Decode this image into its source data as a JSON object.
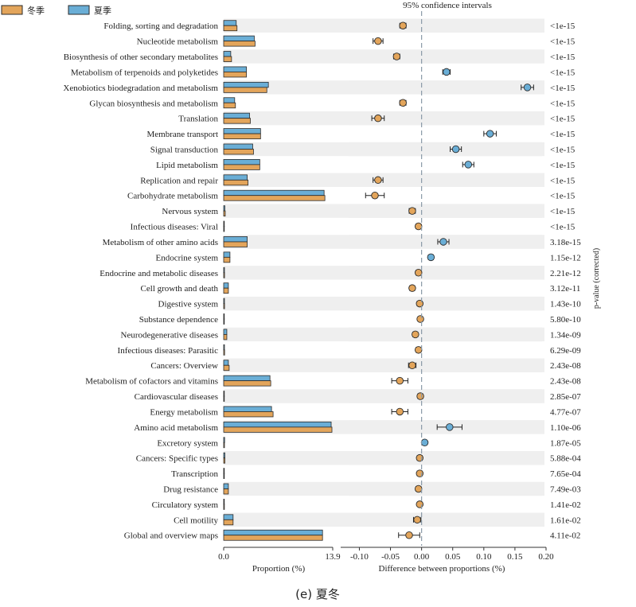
{
  "legend": [
    {
      "name": "冬季",
      "color": "#e3a55b"
    },
    {
      "name": "夏季",
      "color": "#6aaed6"
    }
  ],
  "colors": {
    "winter": "#e3a55b",
    "summer": "#6aaed6",
    "stripe": "#efefef",
    "edge": "#2b2b2b",
    "dash": "#8a9aa8"
  },
  "caption": "(e) 夏冬",
  "ci_title": "95% confidence intervals",
  "pvalue_axis_label": "p-value (corrected)",
  "chart_data": {
    "type": "bar",
    "categories": [
      "Folding, sorting and degradation",
      "Nucleotide metabolism",
      "Biosynthesis of other secondary metabolites",
      "Metabolism of terpenoids and polyketides",
      "Xenobiotics biodegradation and metabolism",
      "Glycan biosynthesis and metabolism",
      "Translation",
      "Membrane transport",
      "Signal transduction",
      "Lipid metabolism",
      "Replication and repair",
      "Carbohydrate metabolism",
      "Nervous system",
      "Infectious diseases: Viral",
      "Metabolism of other amino acids",
      "Endocrine system",
      "Endocrine and metabolic diseases",
      "Cell growth and death",
      "Digestive system",
      "Substance dependence",
      "Neurodegenerative diseases",
      "Infectious diseases: Parasitic",
      "Cancers: Overview",
      "Metabolism of cofactors and vitamins",
      "Cardiovascular diseases",
      "Energy metabolism",
      "Amino acid metabolism",
      "Excretory system",
      "Cancers: Specific types",
      "Transcription",
      "Drug resistance",
      "Circulatory system",
      "Cell motility",
      "Global and overview maps"
    ],
    "series": [
      {
        "name": "夏季",
        "values": [
          1.6,
          3.9,
          0.9,
          2.9,
          5.7,
          1.4,
          3.3,
          4.7,
          3.7,
          4.6,
          3.0,
          12.8,
          0.15,
          0.05,
          3.0,
          0.8,
          0.1,
          0.6,
          0.1,
          0.03,
          0.4,
          0.1,
          0.6,
          5.9,
          0.05,
          6.1,
          13.7,
          0.12,
          0.15,
          0.05,
          0.6,
          0.08,
          1.2,
          12.6
        ]
      },
      {
        "name": "冬季",
        "values": [
          1.7,
          4.0,
          1.0,
          2.9,
          5.5,
          1.5,
          3.4,
          4.7,
          3.8,
          4.6,
          3.1,
          12.9,
          0.2,
          0.06,
          3.0,
          0.8,
          0.11,
          0.6,
          0.11,
          0.04,
          0.4,
          0.12,
          0.7,
          6.0,
          0.06,
          6.3,
          13.8,
          0.1,
          0.16,
          0.06,
          0.6,
          0.09,
          1.2,
          12.6
        ]
      }
    ],
    "proportion_axis": {
      "label": "Proportion (%)",
      "ticks": [
        "0.0",
        "13.9"
      ],
      "range": [
        0,
        13.9
      ]
    },
    "difference": {
      "label": "Difference between proportions (%)",
      "ticks": [
        "-0.10",
        "-0.05",
        "0.00",
        "0.05",
        "0.10",
        "0.15",
        "0.20"
      ],
      "range": [
        -0.13,
        0.2
      ],
      "mean": [
        -0.03,
        -0.07,
        -0.04,
        0.04,
        0.17,
        -0.03,
        -0.07,
        0.11,
        0.055,
        0.075,
        -0.07,
        -0.075,
        -0.015,
        -0.005,
        0.035,
        0.015,
        -0.005,
        -0.015,
        -0.003,
        -0.002,
        -0.01,
        -0.005,
        -0.015,
        -0.035,
        -0.002,
        -0.035,
        0.045,
        0.005,
        -0.003,
        -0.003,
        -0.005,
        -0.003,
        -0.007,
        -0.02
      ],
      "ci_low": [
        -0.035,
        -0.078,
        -0.045,
        0.034,
        0.16,
        -0.035,
        -0.08,
        0.1,
        0.046,
        0.066,
        -0.078,
        -0.09,
        -0.02,
        -0.009,
        0.026,
        0.011,
        -0.009,
        -0.019,
        -0.007,
        -0.005,
        -0.014,
        -0.009,
        -0.021,
        -0.048,
        -0.006,
        -0.048,
        0.025,
        0.002,
        -0.007,
        -0.007,
        -0.009,
        -0.006,
        -0.013,
        -0.037
      ],
      "ci_high": [
        -0.025,
        -0.062,
        -0.035,
        0.046,
        0.18,
        -0.025,
        -0.06,
        0.12,
        0.064,
        0.084,
        -0.062,
        -0.06,
        -0.01,
        -0.001,
        0.044,
        0.019,
        -0.001,
        -0.011,
        0.001,
        0.001,
        -0.006,
        -0.001,
        -0.009,
        -0.022,
        0.002,
        -0.022,
        0.065,
        0.008,
        0.001,
        0.001,
        -0.001,
        0.0,
        -0.001,
        -0.003
      ],
      "higher_in": [
        "冬季",
        "冬季",
        "冬季",
        "夏季",
        "夏季",
        "冬季",
        "冬季",
        "夏季",
        "夏季",
        "夏季",
        "冬季",
        "冬季",
        "冬季",
        "冬季",
        "夏季",
        "夏季",
        "冬季",
        "冬季",
        "冬季",
        "冬季",
        "冬季",
        "冬季",
        "冬季",
        "冬季",
        "冬季",
        "冬季",
        "夏季",
        "夏季",
        "冬季",
        "冬季",
        "冬季",
        "冬季",
        "冬季",
        "冬季"
      ]
    },
    "p_values": [
      "<1e-15",
      "<1e-15",
      "<1e-15",
      "<1e-15",
      "<1e-15",
      "<1e-15",
      "<1e-15",
      "<1e-15",
      "<1e-15",
      "<1e-15",
      "<1e-15",
      "<1e-15",
      "<1e-15",
      "<1e-15",
      "3.18e-15",
      "1.15e-12",
      "2.21e-12",
      "3.12e-11",
      "1.43e-10",
      "5.80e-10",
      "1.34e-09",
      "6.29e-09",
      "2.43e-08",
      "2.43e-08",
      "2.85e-07",
      "4.77e-07",
      "1.10e-06",
      "1.87e-05",
      "5.88e-04",
      "7.65e-04",
      "7.49e-03",
      "1.41e-02",
      "1.61e-02",
      "4.11e-02"
    ]
  }
}
